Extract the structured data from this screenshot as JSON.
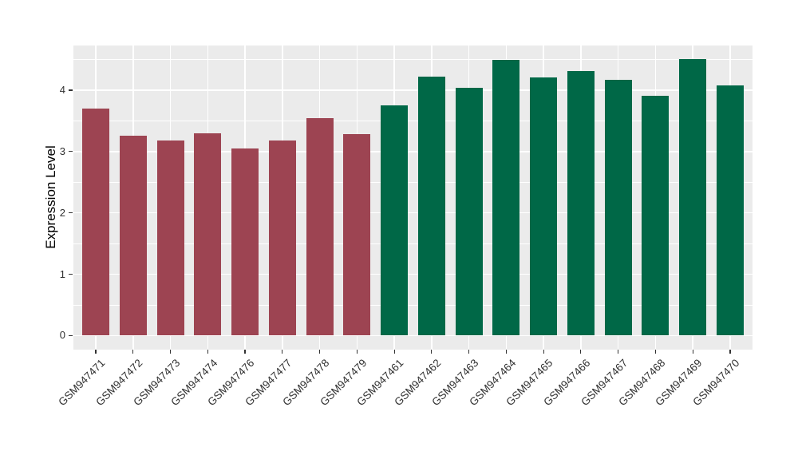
{
  "figure": {
    "background_color": "#FFFFFF",
    "panel_background_color": "#EBEBEB",
    "gridline_color": "#FFFFFF",
    "tick_mark_color": "#333333",
    "axis_text_color": "#303030",
    "axis_title_color": "#000000"
  },
  "chart_data": {
    "type": "bar",
    "title": "",
    "xlabel": "",
    "ylabel": "Expression Level",
    "legend": "none",
    "grid": "horizontal major+minor, vertical major at category centers",
    "categories": [
      "GSM947471",
      "GSM947472",
      "GSM947473",
      "GSM947474",
      "GSM947476",
      "GSM947477",
      "GSM947478",
      "GSM947479",
      "GSM947461",
      "GSM947462",
      "GSM947463",
      "GSM947464",
      "GSM947465",
      "GSM947466",
      "GSM947467",
      "GSM947468",
      "GSM947469",
      "GSM947470"
    ],
    "values": [
      3.7,
      3.26,
      3.18,
      3.3,
      3.05,
      3.18,
      3.54,
      3.29,
      3.76,
      4.22,
      4.04,
      4.5,
      4.21,
      4.31,
      4.17,
      3.91,
      4.51,
      4.08
    ],
    "bar_colors": [
      "#9D4452",
      "#9D4452",
      "#9D4452",
      "#9D4452",
      "#9D4452",
      "#9D4452",
      "#9D4452",
      "#9D4452",
      "#006847",
      "#006847",
      "#006847",
      "#006847",
      "#006847",
      "#006847",
      "#006847",
      "#006847",
      "#006847",
      "#006847"
    ],
    "groups": [
      {
        "name": "maroon-group",
        "color": "#9D4452",
        "categories": [
          "GSM947471",
          "GSM947472",
          "GSM947473",
          "GSM947474",
          "GSM947476",
          "GSM947477",
          "GSM947478",
          "GSM947479"
        ]
      },
      {
        "name": "green-group",
        "color": "#006847",
        "categories": [
          "GSM947461",
          "GSM947462",
          "GSM947463",
          "GSM947464",
          "GSM947465",
          "GSM947466",
          "GSM947467",
          "GSM947468",
          "GSM947469",
          "GSM947470"
        ]
      }
    ],
    "yticks": [
      0,
      1,
      2,
      3,
      4
    ],
    "yticks_minor": [
      0.5,
      1.5,
      2.5,
      3.5,
      4.5
    ],
    "ylim": [
      -0.23,
      4.73
    ]
  }
}
